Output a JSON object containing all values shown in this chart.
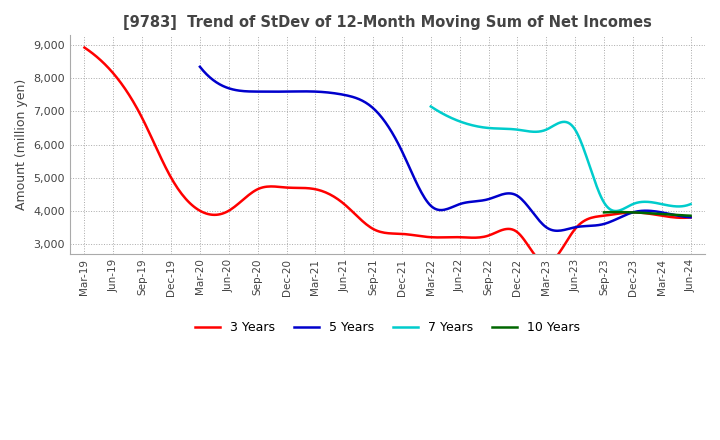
{
  "title": "[9783]  Trend of StDev of 12-Month Moving Sum of Net Incomes",
  "ylabel": "Amount (million yen)",
  "ylim": [
    2700,
    9300
  ],
  "yticks": [
    3000,
    4000,
    5000,
    6000,
    7000,
    8000,
    9000
  ],
  "background_color": "#ffffff",
  "grid_color": "#aaaaaa",
  "lines": {
    "3 Years": {
      "color": "#ff0000",
      "data": {
        "Mar-19": 8930,
        "Jun-19": 8150,
        "Sep-19": 6800,
        "Dec-19": 5000,
        "Mar-20": 4000,
        "Jun-20": 4000,
        "Sep-20": 4650,
        "Dec-20": 4700,
        "Mar-21": 4650,
        "Jun-21": 4200,
        "Sep-21": 3450,
        "Dec-21": 3300,
        "Mar-22": 3200,
        "Jun-22": 3200,
        "Sep-22": 3250,
        "Dec-22": 3350,
        "Mar-23": 2400,
        "Jun-23": 3450,
        "Sep-23": 3850,
        "Dec-23": 3950,
        "Mar-24": 3850,
        "Jun-24": 3800
      }
    },
    "5 Years": {
      "color": "#0000cc",
      "data": {
        "Mar-20": 8350,
        "Jun-20": 7700,
        "Sep-20": 7600,
        "Dec-20": 7600,
        "Mar-21": 7600,
        "Jun-21": 7500,
        "Sep-21": 7100,
        "Dec-21": 5800,
        "Mar-22": 4150,
        "Jun-22": 4200,
        "Sep-22": 4350,
        "Dec-22": 4450,
        "Mar-23": 3500,
        "Jun-23": 3500,
        "Sep-23": 3600,
        "Dec-23": 3950,
        "Mar-24": 3950,
        "Jun-24": 3800
      }
    },
    "7 Years": {
      "color": "#00cccc",
      "data": {
        "Mar-22": 7150,
        "Jun-22": 6700,
        "Sep-22": 6500,
        "Dec-22": 6450,
        "Mar-23": 6450,
        "Jun-23": 6450,
        "Sep-23": 4250,
        "Dec-23": 4200,
        "Mar-24": 4200,
        "Jun-24": 4200
      }
    },
    "10 Years": {
      "color": "#006600",
      "data": {
        "Sep-23": 3950,
        "Dec-23": 3950,
        "Mar-24": 3900,
        "Jun-24": 3850
      }
    }
  }
}
